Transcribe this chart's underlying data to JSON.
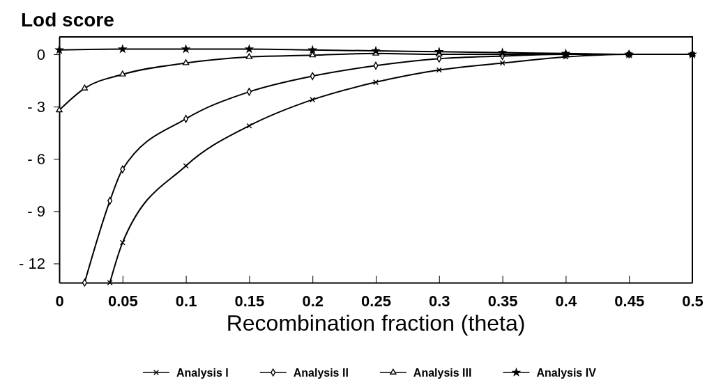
{
  "chart_data": {
    "type": "line",
    "ylabel": "Lod score",
    "xlabel": "Recombination fraction (theta)",
    "xlim": [
      0,
      0.5
    ],
    "xticks": [
      0,
      0.05,
      0.1,
      0.15,
      0.2,
      0.25,
      0.3,
      0.35,
      0.4,
      0.45,
      0.5
    ],
    "ylim": [
      -13.1,
      1
    ],
    "yticks": [
      0,
      -3,
      -6,
      -9,
      -12
    ],
    "legend": "bottom",
    "line_style": "solid",
    "series": [
      {
        "name": "Analysis I",
        "color": "#000000",
        "marker": "cross",
        "x": [
          0.04,
          0.05,
          0.1,
          0.15,
          0.2,
          0.25,
          0.3,
          0.35,
          0.4,
          0.45,
          0.5
        ],
        "values": [
          -13.1,
          -10.8,
          -6.4,
          -4.1,
          -2.6,
          -1.6,
          -0.9,
          -0.5,
          -0.15,
          0,
          0
        ]
      },
      {
        "name": "Analysis II",
        "color": "#000000",
        "marker": "diamond",
        "x": [
          0.02,
          0.04,
          0.05,
          0.1,
          0.15,
          0.2,
          0.25,
          0.3,
          0.35,
          0.4,
          0.45,
          0.5
        ],
        "values": [
          -13.1,
          -8.4,
          -6.6,
          -3.7,
          -2.15,
          -1.25,
          -0.65,
          -0.25,
          -0.1,
          0,
          0,
          0
        ]
      },
      {
        "name": "Analysis III",
        "color": "#000000",
        "marker": "triangle",
        "x": [
          0,
          0.02,
          0.05,
          0.1,
          0.15,
          0.2,
          0.25,
          0.3,
          0.35,
          0.4,
          0.45,
          0.5
        ],
        "values": [
          -3.2,
          -1.95,
          -1.15,
          -0.5,
          -0.15,
          -0.05,
          0.05,
          0,
          0,
          0,
          0,
          0
        ]
      },
      {
        "name": "Analysis IV",
        "color": "#000000",
        "marker": "star",
        "x": [
          0,
          0.05,
          0.1,
          0.15,
          0.2,
          0.25,
          0.3,
          0.35,
          0.4,
          0.45,
          0.5
        ],
        "values": [
          0.25,
          0.3,
          0.3,
          0.3,
          0.25,
          0.2,
          0.15,
          0.1,
          0.05,
          0,
          0
        ]
      }
    ]
  }
}
